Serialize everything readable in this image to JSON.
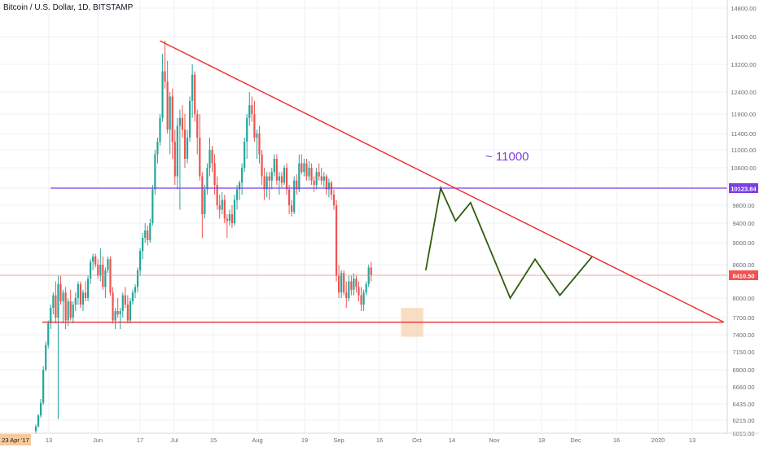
{
  "header": {
    "title": "Bitcoin / U.S. Dollar, 1D, BITSTAMP"
  },
  "chart_data": {
    "type": "candlestick",
    "title": "Bitcoin / U.S. Dollar, 1D, BITSTAMP",
    "colors": {
      "up": "#26a69a",
      "down": "#ef5350",
      "grid": "#eef1f5",
      "trendline": "#ee2e2e",
      "level": "#7b3fe4",
      "projection": "#2f5c0a",
      "box": "#f6d3b0"
    },
    "y_ticks": [
      "14800.00",
      "14000.00",
      "13200.00",
      "12400.00",
      "11900.00",
      "11400.00",
      "11000.00",
      "10600.00",
      "10123.84",
      "9800.00",
      "9400.00",
      "9000.00",
      "8600.00",
      "8410.50",
      "8000.00",
      "7700.00",
      "7400.00",
      "7150.00",
      "6900.00",
      "6660.00",
      "6435.00",
      "6215.00",
      "6015.00"
    ],
    "y_labels": {
      "level": "10123.84",
      "last_price": "8410.50"
    },
    "x_ticks": [
      "13",
      "Jun",
      "17",
      "Jul",
      "15",
      "Aug",
      "19",
      "Sep",
      "16",
      "Oct",
      "14",
      "Nov",
      "18",
      "Dec",
      "16",
      "2020",
      "13"
    ],
    "x_start_label": "23 Apr '17",
    "annotation": "~ 11000",
    "candles": [
      {
        "o": 6050,
        "h": 6150,
        "l": 6015,
        "c": 6120
      },
      {
        "o": 6120,
        "h": 6300,
        "l": 6100,
        "c": 6280
      },
      {
        "o": 6280,
        "h": 6500,
        "l": 6250,
        "c": 6450
      },
      {
        "o": 6450,
        "h": 6950,
        "l": 6420,
        "c": 6900
      },
      {
        "o": 6900,
        "h": 7300,
        "l": 6880,
        "c": 7250
      },
      {
        "o": 7250,
        "h": 7650,
        "l": 7200,
        "c": 7600
      },
      {
        "o": 7600,
        "h": 7900,
        "l": 7500,
        "c": 7850
      },
      {
        "o": 7850,
        "h": 8100,
        "l": 7750,
        "c": 8050
      },
      {
        "o": 8050,
        "h": 8300,
        "l": 7600,
        "c": 7700
      },
      {
        "o": 7700,
        "h": 8400,
        "l": 6230,
        "c": 8250
      },
      {
        "o": 8250,
        "h": 8400,
        "l": 7900,
        "c": 7950
      },
      {
        "o": 7950,
        "h": 8150,
        "l": 7600,
        "c": 8100
      },
      {
        "o": 8100,
        "h": 8200,
        "l": 7500,
        "c": 7650
      },
      {
        "o": 7650,
        "h": 8000,
        "l": 7550,
        "c": 7950
      },
      {
        "o": 7950,
        "h": 8150,
        "l": 7650,
        "c": 7700
      },
      {
        "o": 7700,
        "h": 7950,
        "l": 7600,
        "c": 7900
      },
      {
        "o": 7900,
        "h": 8100,
        "l": 7800,
        "c": 8000
      },
      {
        "o": 8000,
        "h": 8300,
        "l": 7900,
        "c": 8250
      },
      {
        "o": 8250,
        "h": 8300,
        "l": 7850,
        "c": 7900
      },
      {
        "o": 7900,
        "h": 8150,
        "l": 7800,
        "c": 8100
      },
      {
        "o": 8100,
        "h": 8300,
        "l": 7950,
        "c": 8000
      },
      {
        "o": 8000,
        "h": 8400,
        "l": 7950,
        "c": 8350
      },
      {
        "o": 8350,
        "h": 8700,
        "l": 8250,
        "c": 8650
      },
      {
        "o": 8650,
        "h": 8800,
        "l": 8500,
        "c": 8750
      },
      {
        "o": 8750,
        "h": 8800,
        "l": 8550,
        "c": 8600
      },
      {
        "o": 8600,
        "h": 8700,
        "l": 8350,
        "c": 8400
      },
      {
        "o": 8400,
        "h": 8900,
        "l": 8300,
        "c": 8600
      },
      {
        "o": 8600,
        "h": 8750,
        "l": 8150,
        "c": 8200
      },
      {
        "o": 8200,
        "h": 8550,
        "l": 8000,
        "c": 8500
      },
      {
        "o": 8500,
        "h": 8750,
        "l": 8450,
        "c": 8700
      },
      {
        "o": 8700,
        "h": 8750,
        "l": 8050,
        "c": 8100
      },
      {
        "o": 8100,
        "h": 8200,
        "l": 7600,
        "c": 7650
      },
      {
        "o": 7650,
        "h": 7850,
        "l": 7500,
        "c": 7800
      },
      {
        "o": 7800,
        "h": 8000,
        "l": 7700,
        "c": 7750
      },
      {
        "o": 7750,
        "h": 7850,
        "l": 7500,
        "c": 7800
      },
      {
        "o": 7800,
        "h": 8100,
        "l": 7700,
        "c": 8050
      },
      {
        "o": 8050,
        "h": 8200,
        "l": 7850,
        "c": 7900
      },
      {
        "o": 7900,
        "h": 8050,
        "l": 7600,
        "c": 7650
      },
      {
        "o": 7650,
        "h": 8000,
        "l": 7600,
        "c": 7950
      },
      {
        "o": 7950,
        "h": 8150,
        "l": 7900,
        "c": 8100
      },
      {
        "o": 8100,
        "h": 8250,
        "l": 8000,
        "c": 8200
      },
      {
        "o": 8200,
        "h": 8550,
        "l": 8100,
        "c": 8500
      },
      {
        "o": 8500,
        "h": 8900,
        "l": 8400,
        "c": 8850
      },
      {
        "o": 8850,
        "h": 9200,
        "l": 8700,
        "c": 9100
      },
      {
        "o": 9100,
        "h": 9400,
        "l": 9000,
        "c": 9250
      },
      {
        "o": 9250,
        "h": 9350,
        "l": 8950,
        "c": 9050
      },
      {
        "o": 9050,
        "h": 9500,
        "l": 9000,
        "c": 9400
      },
      {
        "o": 9400,
        "h": 10200,
        "l": 9350,
        "c": 10100
      },
      {
        "o": 10100,
        "h": 11000,
        "l": 10000,
        "c": 10900
      },
      {
        "o": 10900,
        "h": 11300,
        "l": 10700,
        "c": 11200
      },
      {
        "o": 11200,
        "h": 11900,
        "l": 11100,
        "c": 11800
      },
      {
        "o": 11800,
        "h": 13500,
        "l": 11700,
        "c": 13000
      },
      {
        "o": 13000,
        "h": 13880,
        "l": 12500,
        "c": 12700
      },
      {
        "o": 12700,
        "h": 13300,
        "l": 11400,
        "c": 11500
      },
      {
        "o": 11500,
        "h": 12400,
        "l": 10900,
        "c": 12300
      },
      {
        "o": 12300,
        "h": 12500,
        "l": 10800,
        "c": 11200
      },
      {
        "o": 11200,
        "h": 11500,
        "l": 10200,
        "c": 10400
      },
      {
        "o": 10400,
        "h": 11800,
        "l": 10100,
        "c": 11600
      },
      {
        "o": 11600,
        "h": 12000,
        "l": 9700,
        "c": 11800
      },
      {
        "o": 11800,
        "h": 12100,
        "l": 11300,
        "c": 11500
      },
      {
        "o": 11500,
        "h": 11900,
        "l": 10600,
        "c": 10800
      },
      {
        "o": 10800,
        "h": 11500,
        "l": 10700,
        "c": 11300
      },
      {
        "o": 11300,
        "h": 12300,
        "l": 11200,
        "c": 12200
      },
      {
        "o": 12200,
        "h": 13200,
        "l": 11800,
        "c": 12900
      },
      {
        "o": 12900,
        "h": 13000,
        "l": 11700,
        "c": 11900
      },
      {
        "o": 11900,
        "h": 12000,
        "l": 10900,
        "c": 11300
      },
      {
        "o": 11300,
        "h": 11900,
        "l": 10300,
        "c": 10400
      },
      {
        "o": 10400,
        "h": 10500,
        "l": 9100,
        "c": 9600
      },
      {
        "o": 9600,
        "h": 10200,
        "l": 9500,
        "c": 10100
      },
      {
        "o": 10100,
        "h": 10700,
        "l": 10000,
        "c": 10600
      },
      {
        "o": 10600,
        "h": 11300,
        "l": 10400,
        "c": 11000
      },
      {
        "o": 11000,
        "h": 11100,
        "l": 10500,
        "c": 10700
      },
      {
        "o": 10700,
        "h": 10900,
        "l": 10000,
        "c": 10200
      },
      {
        "o": 10200,
        "h": 10400,
        "l": 9700,
        "c": 9800
      },
      {
        "o": 9800,
        "h": 10000,
        "l": 9500,
        "c": 9700
      },
      {
        "o": 9700,
        "h": 10050,
        "l": 9600,
        "c": 9900
      },
      {
        "o": 9900,
        "h": 10000,
        "l": 9400,
        "c": 9500
      },
      {
        "o": 9500,
        "h": 9600,
        "l": 9100,
        "c": 9450
      },
      {
        "o": 9450,
        "h": 9700,
        "l": 9350,
        "c": 9600
      },
      {
        "o": 9600,
        "h": 9800,
        "l": 9300,
        "c": 9400
      },
      {
        "o": 9400,
        "h": 10000,
        "l": 9350,
        "c": 9900
      },
      {
        "o": 9900,
        "h": 10200,
        "l": 9700,
        "c": 10100
      },
      {
        "o": 10100,
        "h": 10300,
        "l": 9900,
        "c": 10250
      },
      {
        "o": 10250,
        "h": 10700,
        "l": 10000,
        "c": 10600
      },
      {
        "o": 10600,
        "h": 11300,
        "l": 10500,
        "c": 11200
      },
      {
        "o": 11200,
        "h": 11900,
        "l": 10800,
        "c": 11800
      },
      {
        "o": 11800,
        "h": 12400,
        "l": 11600,
        "c": 12100
      },
      {
        "o": 12100,
        "h": 12300,
        "l": 11700,
        "c": 11900
      },
      {
        "o": 11900,
        "h": 12200,
        "l": 11200,
        "c": 11300
      },
      {
        "o": 11300,
        "h": 11500,
        "l": 10800,
        "c": 11400
      },
      {
        "o": 11400,
        "h": 11600,
        "l": 10700,
        "c": 10900
      },
      {
        "o": 10900,
        "h": 11000,
        "l": 10200,
        "c": 10400
      },
      {
        "o": 10400,
        "h": 10600,
        "l": 9900,
        "c": 10100
      },
      {
        "o": 10100,
        "h": 10500,
        "l": 9950,
        "c": 10400
      },
      {
        "o": 10400,
        "h": 10500,
        "l": 9900,
        "c": 10300
      },
      {
        "o": 10300,
        "h": 10600,
        "l": 10100,
        "c": 10500
      },
      {
        "o": 10500,
        "h": 10900,
        "l": 10400,
        "c": 10800
      },
      {
        "o": 10800,
        "h": 10900,
        "l": 10200,
        "c": 10300
      },
      {
        "o": 10300,
        "h": 10500,
        "l": 10000,
        "c": 10400
      },
      {
        "o": 10400,
        "h": 10500,
        "l": 10150,
        "c": 10250
      },
      {
        "o": 10250,
        "h": 10650,
        "l": 10200,
        "c": 10600
      },
      {
        "o": 10600,
        "h": 10700,
        "l": 10000,
        "c": 10100
      },
      {
        "o": 10100,
        "h": 10200,
        "l": 9600,
        "c": 9800
      },
      {
        "o": 9800,
        "h": 9900,
        "l": 9550,
        "c": 9650
      },
      {
        "o": 9650,
        "h": 10400,
        "l": 9600,
        "c": 10300
      },
      {
        "o": 10300,
        "h": 10450,
        "l": 10000,
        "c": 10100
      },
      {
        "o": 10100,
        "h": 10900,
        "l": 10050,
        "c": 10700
      },
      {
        "o": 10700,
        "h": 10900,
        "l": 10450,
        "c": 10500
      },
      {
        "o": 10500,
        "h": 10800,
        "l": 10400,
        "c": 10700
      },
      {
        "o": 10700,
        "h": 10800,
        "l": 10300,
        "c": 10400
      },
      {
        "o": 10400,
        "h": 10750,
        "l": 10300,
        "c": 10600
      },
      {
        "o": 10600,
        "h": 10700,
        "l": 10200,
        "c": 10300
      },
      {
        "o": 10300,
        "h": 10400,
        "l": 10050,
        "c": 10200
      },
      {
        "o": 10200,
        "h": 10600,
        "l": 10100,
        "c": 10500
      },
      {
        "o": 10500,
        "h": 10700,
        "l": 10300,
        "c": 10400
      },
      {
        "o": 10400,
        "h": 10600,
        "l": 10200,
        "c": 10300
      },
      {
        "o": 10300,
        "h": 10500,
        "l": 10150,
        "c": 10400
      },
      {
        "o": 10400,
        "h": 10450,
        "l": 10000,
        "c": 10100
      },
      {
        "o": 10100,
        "h": 10350,
        "l": 9950,
        "c": 10250
      },
      {
        "o": 10250,
        "h": 10300,
        "l": 9900,
        "c": 10000
      },
      {
        "o": 10000,
        "h": 10100,
        "l": 9700,
        "c": 9800
      },
      {
        "o": 9800,
        "h": 9900,
        "l": 8300,
        "c": 8400
      },
      {
        "o": 8400,
        "h": 8600,
        "l": 8000,
        "c": 8100
      },
      {
        "o": 8100,
        "h": 8500,
        "l": 8000,
        "c": 8450
      },
      {
        "o": 8450,
        "h": 8500,
        "l": 8050,
        "c": 8100
      },
      {
        "o": 8100,
        "h": 8300,
        "l": 7850,
        "c": 8000
      },
      {
        "o": 8000,
        "h": 8400,
        "l": 7950,
        "c": 8300
      },
      {
        "o": 8300,
        "h": 8400,
        "l": 8050,
        "c": 8150
      },
      {
        "o": 8150,
        "h": 8450,
        "l": 8050,
        "c": 8350
      },
      {
        "o": 8350,
        "h": 8400,
        "l": 8100,
        "c": 8200
      },
      {
        "o": 8200,
        "h": 8300,
        "l": 7950,
        "c": 8050
      },
      {
        "o": 8050,
        "h": 8200,
        "l": 7800,
        "c": 7900
      },
      {
        "o": 7900,
        "h": 8150,
        "l": 7800,
        "c": 8100
      },
      {
        "o": 8100,
        "h": 8300,
        "l": 8050,
        "c": 8250
      },
      {
        "o": 8250,
        "h": 8600,
        "l": 8200,
        "c": 8550
      },
      {
        "o": 8550,
        "h": 8650,
        "l": 8300,
        "c": 8410
      }
    ],
    "drawings": {
      "descending_trendline": {
        "start": {
          "i": 50,
          "price": 13880
        },
        "end": {
          "i": 277,
          "price": 7620
        }
      },
      "support_line": {
        "start": {
          "i": 0,
          "price": 7620
        },
        "end": {
          "i": 277,
          "price": 7620
        }
      },
      "level_line": {
        "start": {
          "i": 6,
          "price": 10123.84
        },
        "end": {
          "i": 292,
          "price": 10123.84
        }
      },
      "last_price_line": {
        "price": 8410.5
      },
      "demand_box": {
        "i0": 147,
        "i1": 156,
        "top": 7850,
        "bottom": 7370
      },
      "projection": [
        {
          "i": 157,
          "price": 8500
        },
        {
          "i": 163,
          "price": 10123.84
        },
        {
          "i": 169,
          "price": 9450
        },
        {
          "i": 175,
          "price": 9850
        },
        {
          "i": 191,
          "price": 8000
        },
        {
          "i": 201,
          "price": 8700
        },
        {
          "i": 211,
          "price": 8050
        },
        {
          "i": 224,
          "price": 8750
        }
      ]
    }
  }
}
